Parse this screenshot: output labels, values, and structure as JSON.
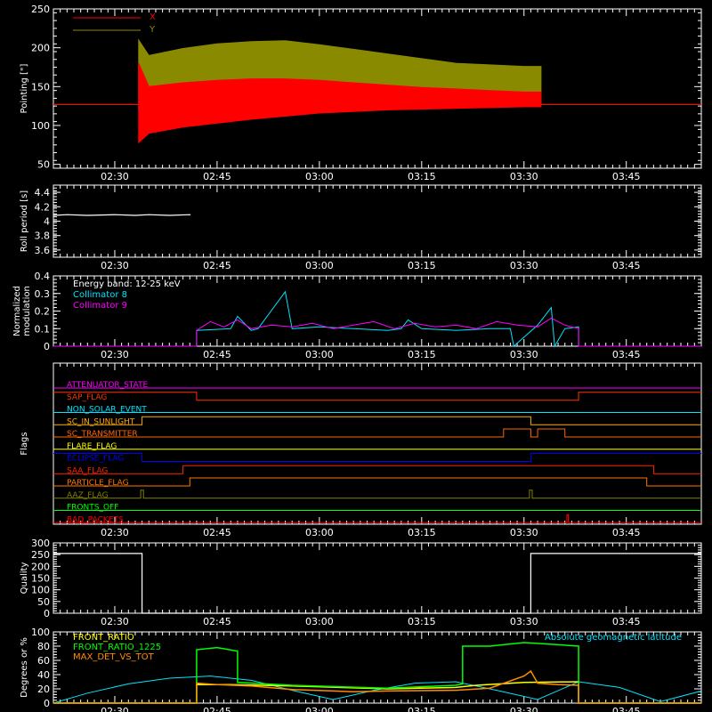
{
  "colors": {
    "background": "#000000",
    "axis": "#ffffff",
    "x": "#ff0000",
    "y": "#8a8a00",
    "roll": "#ffffff",
    "collimator8": "#00e5ff",
    "collimator9": "#ff00ff",
    "quality": "#ffffff",
    "front_ratio": "#ffff00",
    "front_ratio_1225": "#00ff00",
    "max_det_vs_tot": "#ff8c00",
    "geomag": "#00e5ff"
  },
  "time_axis": {
    "start_min": 141,
    "end_min": 236,
    "tick_minutes": [
      150,
      165,
      180,
      195,
      210,
      225
    ],
    "tick_labels": [
      "02:30",
      "02:45",
      "03:00",
      "03:15",
      "03:30",
      "03:45"
    ]
  },
  "chart_data": [
    {
      "type": "area",
      "id": "pointing",
      "ylabel": "Pointing [\"]",
      "ylim": [
        45,
        250
      ],
      "yticks": [
        50,
        100,
        150,
        200,
        250
      ],
      "legend": [
        "X",
        "Y"
      ],
      "series": [
        {
          "name": "X",
          "x": [
            141,
            153.5,
            153.5,
            155,
            160,
            165,
            170,
            175,
            180,
            185,
            190,
            195,
            200,
            205,
            210,
            212.5,
            212.5,
            236
          ],
          "low": [
            127,
            127,
            78,
            90,
            98,
            103,
            108,
            112,
            116,
            118,
            120,
            121,
            122,
            123,
            124,
            124,
            127,
            127
          ],
          "high": [
            127,
            127,
            180,
            150,
            155,
            158,
            160,
            160,
            158,
            155,
            152,
            149,
            147,
            145,
            143,
            143,
            127,
            127
          ]
        },
        {
          "name": "Y",
          "x": [
            141,
            153.5,
            153.5,
            155,
            160,
            165,
            170,
            175,
            180,
            185,
            190,
            195,
            200,
            205,
            210,
            212.5,
            212.5,
            236
          ],
          "low": [
            127,
            127,
            120,
            128,
            135,
            140,
            143,
            140,
            138,
            137,
            136,
            135,
            134,
            133,
            132,
            132,
            127,
            127
          ],
          "high": [
            127,
            127,
            210,
            190,
            199,
            205,
            208,
            209,
            204,
            198,
            192,
            186,
            180,
            178,
            176,
            176,
            127,
            127
          ]
        }
      ]
    },
    {
      "type": "line",
      "id": "roll",
      "ylabel": "Roll period [s]",
      "ylim": [
        3.5,
        4.5
      ],
      "yticks": [
        3.6,
        3.8,
        4.0,
        4.2,
        4.4
      ],
      "series": [
        {
          "name": "Roll period",
          "x": [
            141,
            143,
            146,
            150,
            153,
            155,
            158,
            161,
            161
          ],
          "y": [
            4.08,
            4.09,
            4.08,
            4.09,
            4.08,
            4.09,
            4.08,
            4.09,
            4.08
          ]
        }
      ]
    },
    {
      "type": "line",
      "id": "modulation",
      "ylabel": "Normalized modulation",
      "ylim": [
        0,
        0.4
      ],
      "yticks": [
        0.0,
        0.1,
        0.2,
        0.3,
        0.4
      ],
      "legend": [
        "Energy band: 12-25 keV",
        "Collimator 8",
        "Collimator 9"
      ],
      "series": [
        {
          "name": "Collimator 8",
          "x": [
            141,
            162,
            162,
            167,
            168,
            170,
            171,
            175,
            176,
            180,
            185,
            190,
            192,
            193,
            195,
            200,
            205,
            208,
            208.5,
            212,
            214,
            214.5,
            216,
            218,
            218,
            236
          ],
          "y": [
            0,
            0,
            0.09,
            0.1,
            0.17,
            0.09,
            0.1,
            0.31,
            0.1,
            0.11,
            0.1,
            0.09,
            0.1,
            0.15,
            0.1,
            0.09,
            0.1,
            0.1,
            0,
            0.12,
            0.22,
            0,
            0.1,
            0.11,
            0,
            0
          ]
        },
        {
          "name": "Collimator 9",
          "x": [
            141,
            162,
            162,
            164,
            166,
            168,
            170,
            173,
            176,
            179,
            182,
            185,
            188,
            191,
            194,
            197,
            200,
            203,
            206,
            209,
            212,
            214,
            216,
            218,
            218,
            236
          ],
          "y": [
            0,
            0,
            0.09,
            0.14,
            0.11,
            0.15,
            0.1,
            0.12,
            0.11,
            0.13,
            0.1,
            0.12,
            0.14,
            0.1,
            0.13,
            0.11,
            0.12,
            0.1,
            0.14,
            0.12,
            0.11,
            0.16,
            0.12,
            0.1,
            0,
            0
          ]
        }
      ]
    },
    {
      "type": "line",
      "id": "flags",
      "ylabel": "Flags",
      "series": [
        {
          "name": "ATTENUATOR_STATE",
          "color": "#ff00ff",
          "segments": [
            [
              141,
              236,
              0
            ]
          ]
        },
        {
          "name": "SAP_FLAG",
          "color": "#ff3300",
          "segments": [
            [
              141,
              162,
              1
            ],
            [
              162,
              218,
              0
            ],
            [
              218,
              236,
              1
            ]
          ]
        },
        {
          "name": "NON_SOLAR_EVENT",
          "color": "#00e5ff",
          "segments": [
            [
              141,
              236,
              0
            ]
          ]
        },
        {
          "name": "SC_IN_SUNLIGHT",
          "color": "#ffaa00",
          "segments": [
            [
              141,
              154,
              0
            ],
            [
              154,
              211,
              1
            ],
            [
              211,
              236,
              0
            ]
          ]
        },
        {
          "name": "SC_TRANSMITTER",
          "color": "#ff6600",
          "segments": [
            [
              141,
              207,
              0
            ],
            [
              207,
              211,
              1
            ],
            [
              211,
              212,
              0
            ],
            [
              212,
              216,
              1
            ],
            [
              216,
              236,
              0
            ]
          ]
        },
        {
          "name": "FLARE_FLAG",
          "color": "#ffff00",
          "segments": [
            [
              141,
              236,
              0
            ]
          ]
        },
        {
          "name": "ECLIPSE_FLAG",
          "color": "#0000ff",
          "segments": [
            [
              141,
              154,
              1
            ],
            [
              154,
              211,
              0
            ],
            [
              211,
              236,
              1
            ]
          ]
        },
        {
          "name": "SAA_FLAG",
          "color": "#ff2200",
          "segments": [
            [
              141,
              160,
              0
            ],
            [
              160,
              229,
              1
            ],
            [
              229,
              236,
              0
            ]
          ]
        },
        {
          "name": "PARTICLE_FLAG",
          "color": "#ff7700",
          "segments": [
            [
              141,
              161,
              0
            ],
            [
              161,
              228,
              1
            ],
            [
              228,
              236,
              0
            ]
          ]
        },
        {
          "name": "AAZ_FLAG",
          "color": "#808000",
          "segments": [
            [
              141,
              153.8,
              0
            ],
            [
              153.8,
              154.2,
              1
            ],
            [
              154.2,
              210.8,
              0
            ],
            [
              210.8,
              211.2,
              1
            ],
            [
              211.2,
              236,
              0
            ]
          ]
        },
        {
          "name": "FRONTS_OFF",
          "color": "#00ff00",
          "segments": [
            [
              141,
              236,
              0
            ]
          ]
        },
        {
          "name": "BAD_PACKETS",
          "color": "#ff0000",
          "segments": [
            [
              141,
              216.3,
              0
            ],
            [
              216.3,
              216.5,
              1
            ],
            [
              216.5,
              236,
              0
            ]
          ]
        }
      ]
    },
    {
      "type": "line",
      "id": "quality",
      "ylabel": "Quality",
      "ylim": [
        0,
        300
      ],
      "yticks": [
        0,
        50,
        100,
        150,
        200,
        250,
        300
      ],
      "series": [
        {
          "name": "Quality",
          "x": [
            141,
            154,
            154,
            211,
            211,
            236
          ],
          "y": [
            255,
            255,
            0,
            0,
            255,
            255
          ]
        }
      ]
    },
    {
      "type": "line",
      "id": "ratios",
      "ylabel": "Degrees or %",
      "ylim": [
        0,
        100
      ],
      "yticks": [
        0,
        20,
        40,
        60,
        80,
        100
      ],
      "legend": [
        "FRONT_RATIO",
        "FRONT_RATIO_1225",
        "MAX_DET_VS_TOT",
        "Absolute geomagnetic latitude"
      ],
      "series": [
        {
          "name": "FRONT_RATIO",
          "x": [
            141,
            162,
            162,
            167,
            167,
            176,
            190,
            200,
            203,
            210,
            218,
            218,
            236
          ],
          "y": [
            0,
            0,
            26,
            26,
            26,
            24,
            20,
            22,
            25,
            29,
            30,
            0,
            0
          ]
        },
        {
          "name": "FRONT_RATIO_1225",
          "x": [
            141,
            162,
            162,
            165,
            168,
            168,
            176,
            190,
            200,
            201,
            201,
            205,
            210,
            215,
            218,
            218,
            236
          ],
          "y": [
            0,
            0,
            75,
            78,
            73,
            29,
            25,
            21,
            25,
            27,
            80,
            80,
            85,
            82,
            80,
            0,
            0
          ]
        },
        {
          "name": "MAX_DET_VS_TOT",
          "x": [
            141,
            162,
            162,
            165,
            170,
            176,
            185,
            190,
            200,
            205,
            210,
            211,
            212,
            215,
            218,
            218,
            236
          ],
          "y": [
            0,
            0,
            28,
            26,
            24,
            19,
            16,
            17,
            18,
            21,
            38,
            45,
            28,
            26,
            25,
            0,
            0
          ]
        },
        {
          "name": "Absolute geomagnetic latitude",
          "x": [
            141,
            146,
            152,
            158,
            164,
            170,
            176,
            182,
            188,
            194,
            200,
            206,
            212,
            218,
            224,
            230,
            236
          ],
          "y": [
            0,
            14,
            27,
            35,
            38,
            32,
            18,
            5,
            18,
            28,
            30,
            18,
            5,
            30,
            22,
            2,
            17
          ]
        }
      ]
    }
  ]
}
